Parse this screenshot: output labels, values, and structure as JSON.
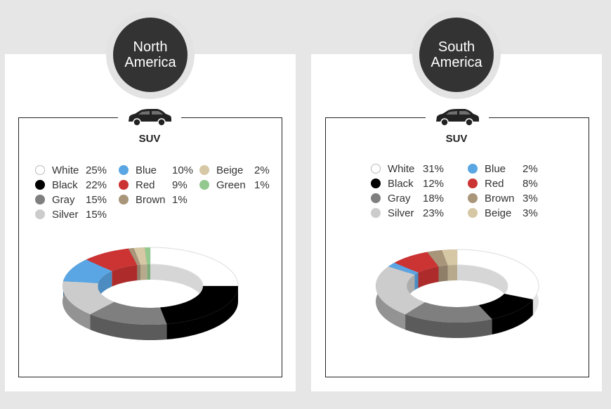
{
  "chart_data": [
    {
      "type": "pie",
      "region": "North America",
      "title": "SUV",
      "slices": [
        {
          "label": "White",
          "value": 25,
          "color": "#ffffff"
        },
        {
          "label": "Black",
          "value": 22,
          "color": "#000000"
        },
        {
          "label": "Gray",
          "value": 15,
          "color": "#7f7f7f"
        },
        {
          "label": "Silver",
          "value": 15,
          "color": "#cccccc"
        },
        {
          "label": "Blue",
          "value": 10,
          "color": "#5aa5e3"
        },
        {
          "label": "Red",
          "value": 9,
          "color": "#cc3333"
        },
        {
          "label": "Brown",
          "value": 1,
          "color": "#a8957a"
        },
        {
          "label": "Beige",
          "value": 2,
          "color": "#d6c7a5"
        },
        {
          "label": "Green",
          "value": 1,
          "color": "#93c98f"
        }
      ]
    },
    {
      "type": "pie",
      "region": "South America",
      "title": "SUV",
      "slices": [
        {
          "label": "White",
          "value": 31,
          "color": "#ffffff"
        },
        {
          "label": "Black",
          "value": 12,
          "color": "#000000"
        },
        {
          "label": "Gray",
          "value": 18,
          "color": "#7f7f7f"
        },
        {
          "label": "Silver",
          "value": 23,
          "color": "#cccccc"
        },
        {
          "label": "Blue",
          "value": 2,
          "color": "#5aa5e3"
        },
        {
          "label": "Red",
          "value": 8,
          "color": "#cc3333"
        },
        {
          "label": "Brown",
          "value": 3,
          "color": "#a8957a"
        },
        {
          "label": "Beige",
          "value": 3,
          "color": "#d6c7a5"
        }
      ]
    }
  ],
  "legend_text": [
    [
      {
        "name": "White",
        "value": "25%"
      },
      {
        "name": "Black",
        "value": "22%"
      },
      {
        "name": "Gray",
        "value": "15%"
      },
      {
        "name": "Silver",
        "value": "15%"
      },
      {
        "name": "Blue",
        "value": "10%"
      },
      {
        "name": "Red",
        "value": "9%"
      },
      {
        "name": "Brown",
        "value": "1%"
      },
      {
        "name": "Beige",
        "value": "2%"
      },
      {
        "name": "Green",
        "value": "1%"
      }
    ],
    [
      {
        "name": "White",
        "value": "31%"
      },
      {
        "name": "Black",
        "value": "12%"
      },
      {
        "name": "Gray",
        "value": "18%"
      },
      {
        "name": "Silver",
        "value": "23%"
      },
      {
        "name": "Blue",
        "value": "2%"
      },
      {
        "name": "Red",
        "value": "8%"
      },
      {
        "name": "Brown",
        "value": "3%"
      },
      {
        "name": "Beige",
        "value": "3%"
      }
    ]
  ],
  "icons": {
    "car": "suv-car-icon"
  }
}
